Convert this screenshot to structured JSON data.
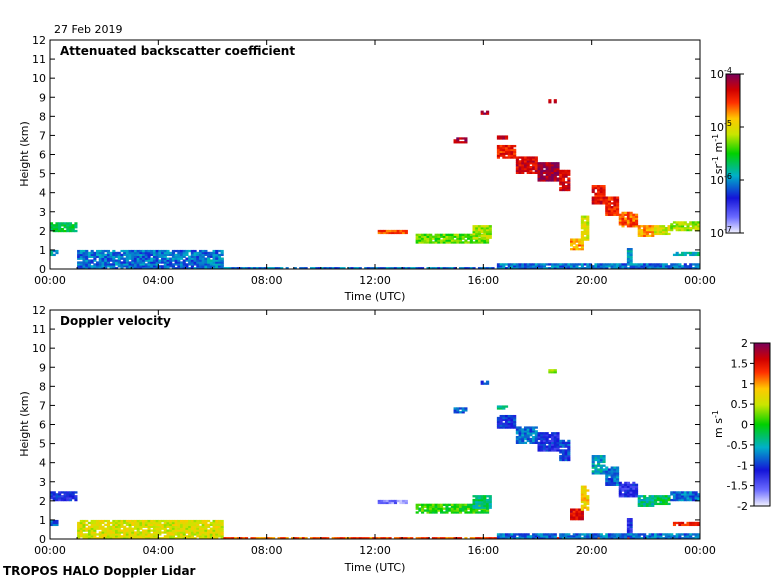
{
  "date_label": "27 Feb 2019",
  "footer_label": "TROPOS HALO Doppler Lidar",
  "chart_data": [
    {
      "type": "heatmap",
      "title": "Attenuated backscatter coefficient",
      "xlabel": "Time (UTC)",
      "ylabel": "Height (km)",
      "x_ticks": [
        "00:00",
        "04:00",
        "08:00",
        "12:00",
        "16:00",
        "20:00",
        "00:00"
      ],
      "x_range_hours": [
        0,
        24
      ],
      "y_ticks": [
        0,
        1,
        2,
        3,
        4,
        5,
        6,
        7,
        8,
        9,
        10,
        11,
        12
      ],
      "ylim": [
        0,
        12
      ],
      "colorbar": {
        "label": "sr-1 m-1",
        "scale": "log",
        "range": [
          1e-07,
          0.0001
        ],
        "ticks": [
          {
            "base": "10",
            "exp": "-4",
            "value": -4
          },
          {
            "base": "10",
            "exp": "-5",
            "value": -5
          },
          {
            "base": "10",
            "exp": "-6",
            "value": -6
          },
          {
            "base": "10",
            "exp": "-7",
            "value": -7
          }
        ]
      },
      "features": [
        {
          "t0": 0.0,
          "t1": 1.0,
          "h0": 1.95,
          "h1": 2.45,
          "v": 0.45
        },
        {
          "t0": 0.0,
          "t1": 0.3,
          "h0": 0.7,
          "h1": 1.0,
          "v": 0.35
        },
        {
          "t0": 1.0,
          "t1": 6.4,
          "h0": 0.0,
          "h1": 1.0,
          "v": 0.3
        },
        {
          "t0": 5.5,
          "t1": 6.4,
          "h0": 0.0,
          "h1": 0.6,
          "v": 0.32
        },
        {
          "t0": 6.4,
          "t1": 24.0,
          "h0": 0.0,
          "h1": 0.1,
          "v": 0.3
        },
        {
          "t0": 12.1,
          "t1": 13.2,
          "h0": 1.85,
          "h1": 2.05,
          "v": 0.8
        },
        {
          "t0": 13.5,
          "t1": 16.2,
          "h0": 1.35,
          "h1": 1.85,
          "v": 0.55
        },
        {
          "t0": 15.6,
          "t1": 16.3,
          "h0": 1.6,
          "h1": 2.3,
          "v": 0.6
        },
        {
          "t0": 14.9,
          "t1": 15.4,
          "h0": 6.6,
          "h1": 6.9,
          "v": 0.95
        },
        {
          "t0": 16.5,
          "t1": 16.9,
          "h0": 6.8,
          "h1": 7.0,
          "v": 0.92
        },
        {
          "t0": 15.9,
          "t1": 16.2,
          "h0": 8.1,
          "h1": 8.3,
          "v": 0.95
        },
        {
          "t0": 18.4,
          "t1": 18.7,
          "h0": 8.7,
          "h1": 8.9,
          "v": 0.95
        },
        {
          "t0": 16.5,
          "t1": 17.2,
          "h0": 5.8,
          "h1": 6.5,
          "v": 0.85
        },
        {
          "t0": 17.2,
          "t1": 18.0,
          "h0": 5.0,
          "h1": 5.9,
          "v": 0.9
        },
        {
          "t0": 18.0,
          "t1": 18.8,
          "h0": 4.6,
          "h1": 5.6,
          "v": 0.95
        },
        {
          "t0": 18.8,
          "t1": 19.2,
          "h0": 4.1,
          "h1": 5.2,
          "v": 0.9
        },
        {
          "t0": 19.2,
          "t1": 19.7,
          "h0": 1.0,
          "h1": 1.6,
          "v": 0.75
        },
        {
          "t0": 19.6,
          "t1": 19.9,
          "h0": 1.5,
          "h1": 2.8,
          "v": 0.65
        },
        {
          "t0": 20.0,
          "t1": 20.5,
          "h0": 3.4,
          "h1": 4.4,
          "v": 0.88
        },
        {
          "t0": 20.5,
          "t1": 21.0,
          "h0": 2.8,
          "h1": 3.8,
          "v": 0.85
        },
        {
          "t0": 21.0,
          "t1": 21.7,
          "h0": 2.2,
          "h1": 3.0,
          "v": 0.8
        },
        {
          "t0": 21.7,
          "t1": 22.3,
          "h0": 1.7,
          "h1": 2.3,
          "v": 0.75
        },
        {
          "t0": 22.3,
          "t1": 22.9,
          "h0": 1.8,
          "h1": 2.3,
          "v": 0.65
        },
        {
          "t0": 22.9,
          "t1": 24.0,
          "h0": 2.0,
          "h1": 2.5,
          "v": 0.6
        },
        {
          "t0": 21.3,
          "t1": 21.5,
          "h0": 0.2,
          "h1": 1.1,
          "v": 0.35
        },
        {
          "t0": 23.0,
          "t1": 24.0,
          "h0": 0.7,
          "h1": 0.9,
          "v": 0.4
        },
        {
          "t0": 16.5,
          "t1": 24.0,
          "h0": 0.0,
          "h1": 0.3,
          "v": 0.3
        }
      ]
    },
    {
      "type": "heatmap",
      "title": "Doppler velocity",
      "xlabel": "Time (UTC)",
      "ylabel": "Height (km)",
      "x_ticks": [
        "00:00",
        "04:00",
        "08:00",
        "12:00",
        "16:00",
        "20:00",
        "00:00"
      ],
      "x_range_hours": [
        0,
        24
      ],
      "y_ticks": [
        0,
        1,
        2,
        3,
        4,
        5,
        6,
        7,
        8,
        9,
        10,
        11,
        12
      ],
      "ylim": [
        0,
        12
      ],
      "colorbar": {
        "label": "m s-1",
        "scale": "linear",
        "range": [
          -2,
          2
        ],
        "ticks": [
          "2",
          "1.5",
          "1",
          "0.5",
          "0",
          "-0.5",
          "-1",
          "-1.5",
          "-2"
        ]
      },
      "features": [
        {
          "t0": 0.0,
          "t1": 1.0,
          "h0": 2.0,
          "h1": 2.5,
          "v": 0.22
        },
        {
          "t0": 0.0,
          "t1": 0.3,
          "h0": 0.7,
          "h1": 1.0,
          "v": 0.3
        },
        {
          "t0": 1.0,
          "t1": 6.4,
          "h0": 0.0,
          "h1": 1.0,
          "v": 0.65
        },
        {
          "t0": 6.4,
          "t1": 24.0,
          "h0": 0.0,
          "h1": 0.1,
          "v": 0.8
        },
        {
          "t0": 12.1,
          "t1": 13.2,
          "h0": 1.85,
          "h1": 2.05,
          "v": 0.1
        },
        {
          "t0": 13.5,
          "t1": 16.2,
          "h0": 1.35,
          "h1": 1.85,
          "v": 0.52
        },
        {
          "t0": 15.6,
          "t1": 16.3,
          "h0": 1.6,
          "h1": 2.3,
          "v": 0.42
        },
        {
          "t0": 14.9,
          "t1": 15.4,
          "h0": 6.6,
          "h1": 6.9,
          "v": 0.3
        },
        {
          "t0": 16.5,
          "t1": 16.9,
          "h0": 6.8,
          "h1": 7.0,
          "v": 0.4
        },
        {
          "t0": 15.9,
          "t1": 16.2,
          "h0": 8.1,
          "h1": 8.3,
          "v": 0.25
        },
        {
          "t0": 18.4,
          "t1": 18.7,
          "h0": 8.7,
          "h1": 8.9,
          "v": 0.55
        },
        {
          "t0": 16.5,
          "t1": 17.2,
          "h0": 5.8,
          "h1": 6.5,
          "v": 0.25
        },
        {
          "t0": 17.2,
          "t1": 18.0,
          "h0": 5.0,
          "h1": 5.9,
          "v": 0.3
        },
        {
          "t0": 18.0,
          "t1": 18.8,
          "h0": 4.6,
          "h1": 5.6,
          "v": 0.22
        },
        {
          "t0": 18.8,
          "t1": 19.2,
          "h0": 4.1,
          "h1": 5.2,
          "v": 0.25
        },
        {
          "t0": 19.2,
          "t1": 19.7,
          "h0": 1.0,
          "h1": 1.6,
          "v": 0.88
        },
        {
          "t0": 19.6,
          "t1": 19.9,
          "h0": 1.5,
          "h1": 2.8,
          "v": 0.7
        },
        {
          "t0": 20.0,
          "t1": 20.5,
          "h0": 3.4,
          "h1": 4.4,
          "v": 0.35
        },
        {
          "t0": 20.5,
          "t1": 21.0,
          "h0": 2.8,
          "h1": 3.8,
          "v": 0.3
        },
        {
          "t0": 21.0,
          "t1": 21.7,
          "h0": 2.2,
          "h1": 3.0,
          "v": 0.2
        },
        {
          "t0": 21.7,
          "t1": 22.3,
          "h0": 1.7,
          "h1": 2.3,
          "v": 0.4
        },
        {
          "t0": 22.3,
          "t1": 22.9,
          "h0": 1.8,
          "h1": 2.3,
          "v": 0.45
        },
        {
          "t0": 22.9,
          "t1": 24.0,
          "h0": 2.0,
          "h1": 2.5,
          "v": 0.3
        },
        {
          "t0": 21.3,
          "t1": 21.5,
          "h0": 0.2,
          "h1": 1.1,
          "v": 0.2
        },
        {
          "t0": 23.0,
          "t1": 24.0,
          "h0": 0.7,
          "h1": 0.9,
          "v": 0.85
        },
        {
          "t0": 16.5,
          "t1": 24.0,
          "h0": 0.0,
          "h1": 0.3,
          "v": 0.3
        }
      ]
    }
  ]
}
